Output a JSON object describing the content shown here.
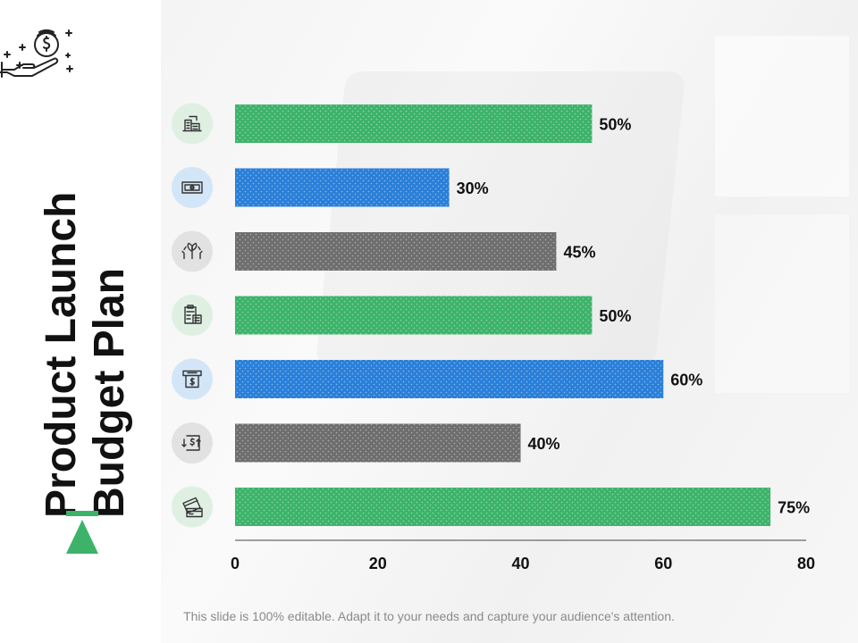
{
  "slide": {
    "title_line1": "Product Launch",
    "title_line2": "Budget Plan",
    "footer_text": "This slide is 100% editable. Adapt it to your needs and capture your audience's attention."
  },
  "colors": {
    "green": "#3db36a",
    "blue": "#2a7fd8",
    "gray": "#6e6e6e",
    "icon_green_bg": "#dff0e3",
    "icon_blue_bg": "#d3e6f7",
    "icon_gray_bg": "#e2e2e2",
    "accent": "#3db36a",
    "axis": "#444444"
  },
  "icons": [
    {
      "name": "office-building-icon",
      "tone": "green"
    },
    {
      "name": "cash-banknote-icon",
      "tone": "blue"
    },
    {
      "name": "growth-plant-icon",
      "tone": "gray"
    },
    {
      "name": "calculator-clipboard-icon",
      "tone": "green"
    },
    {
      "name": "atm-dollar-icon",
      "tone": "blue"
    },
    {
      "name": "dollar-exchange-icon",
      "tone": "gray"
    },
    {
      "name": "credit-cards-icon",
      "tone": "green"
    }
  ],
  "chart_data": {
    "type": "bar",
    "orientation": "horizontal",
    "categories": [
      "",
      "",
      "",
      "",
      "",
      "",
      ""
    ],
    "values": [
      50,
      30,
      45,
      50,
      60,
      40,
      75
    ],
    "value_labels": [
      "50%",
      "30%",
      "45%",
      "50%",
      "60%",
      "40%",
      "75%"
    ],
    "bar_tones": [
      "green",
      "blue",
      "gray",
      "green",
      "blue",
      "gray",
      "green"
    ],
    "xlim": [
      0,
      80
    ],
    "xticks": [
      0,
      20,
      40,
      60,
      80
    ],
    "xtick_labels": [
      "0",
      "20",
      "40",
      "60",
      "80"
    ],
    "title": "",
    "xlabel": "",
    "ylabel": "",
    "grid": false,
    "legend": "none"
  }
}
